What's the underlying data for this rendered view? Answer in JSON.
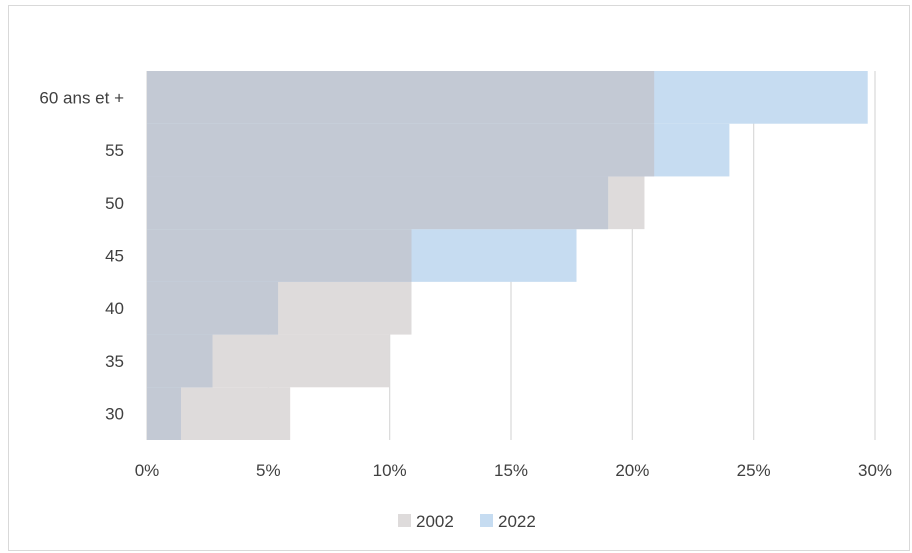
{
  "chart_data": {
    "type": "area",
    "categories": [
      "30",
      "35",
      "40",
      "45",
      "50",
      "55",
      "60 ans et +"
    ],
    "x_ticks": [
      "0%",
      "5%",
      "10%",
      "15%",
      "20%",
      "25%",
      "30%"
    ],
    "xlim": [
      0,
      30
    ],
    "grid": true,
    "legend_position": "bottom",
    "series": [
      {
        "name": "2002",
        "color": "#dedbdb",
        "steps": [
          {
            "from": 27.5,
            "to": 32.5,
            "value": 5.9
          },
          {
            "from": 32.5,
            "to": 37.5,
            "value": 10.0
          },
          {
            "from": 37.5,
            "to": 42.5,
            "value": 10.9
          },
          {
            "from": 42.5,
            "to": 47.5,
            "value": 10.9
          },
          {
            "from": 47.5,
            "to": 52.5,
            "value": 20.5
          },
          {
            "from": 52.5,
            "to": 57.5,
            "value": 20.9
          },
          {
            "from": 57.5,
            "to": 62.5,
            "value": 20.9
          }
        ]
      },
      {
        "name": "2022",
        "color": "#c6dcf1",
        "steps": [
          {
            "from": 27.5,
            "to": 32.5,
            "value": 1.4
          },
          {
            "from": 32.5,
            "to": 37.5,
            "value": 2.7
          },
          {
            "from": 37.5,
            "to": 42.5,
            "value": 5.4
          },
          {
            "from": 42.5,
            "to": 47.5,
            "value": 17.7
          },
          {
            "from": 47.5,
            "to": 52.5,
            "value": 19.0
          },
          {
            "from": 52.5,
            "to": 57.5,
            "value": 24.0
          },
          {
            "from": 57.5,
            "to": 62.5,
            "value": 29.7
          }
        ]
      }
    ],
    "overlap_color": "#c3c9d4"
  }
}
